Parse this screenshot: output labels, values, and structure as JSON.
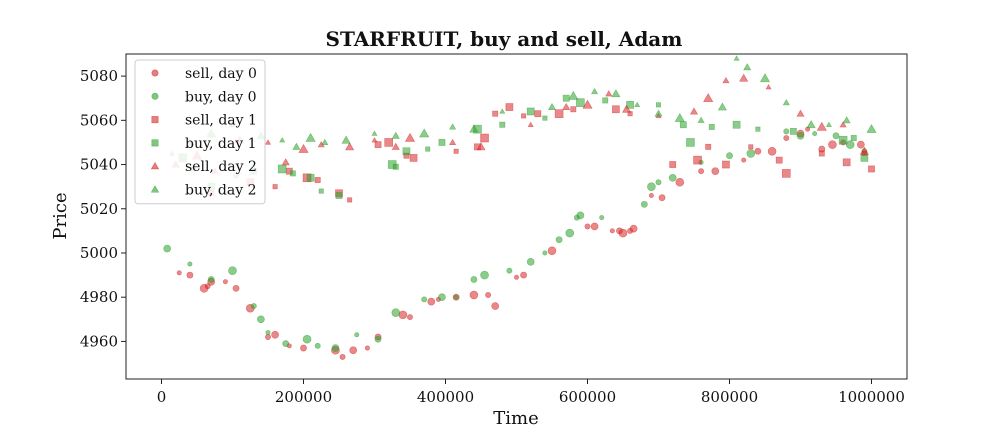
{
  "chart_data": {
    "type": "scatter",
    "title": "STARFRUIT, buy and sell, Adam",
    "xlabel": "Time",
    "ylabel": "Price",
    "xlim": [
      -50000,
      1050000
    ],
    "ylim": [
      4943,
      5090
    ],
    "xticks": [
      0,
      200000,
      400000,
      600000,
      800000,
      1000000
    ],
    "xtick_labels": [
      "0",
      "200000",
      "400000",
      "600000",
      "800000",
      "1000000"
    ],
    "yticks": [
      4960,
      4980,
      5000,
      5020,
      5040,
      5060,
      5080
    ],
    "ytick_labels": [
      "4960",
      "4980",
      "5000",
      "5020",
      "5040",
      "5060",
      "5080"
    ],
    "grid": false,
    "legend_position": "top-left",
    "series": [
      {
        "name": "sell, day 0",
        "color": "#d62728",
        "marker": "circle",
        "points": [
          [
            25000,
            4991
          ],
          [
            40000,
            4990
          ],
          [
            60000,
            4984
          ],
          [
            65000,
            4985
          ],
          [
            70000,
            4987
          ],
          [
            90000,
            4987
          ],
          [
            105000,
            4984
          ],
          [
            125000,
            4975
          ],
          [
            150000,
            4962
          ],
          [
            160000,
            4963
          ],
          [
            180000,
            4958
          ],
          [
            200000,
            4957
          ],
          [
            245000,
            4956
          ],
          [
            255000,
            4953
          ],
          [
            270000,
            4956
          ],
          [
            290000,
            4957
          ],
          [
            305000,
            4962
          ],
          [
            340000,
            4972
          ],
          [
            350000,
            4971
          ],
          [
            380000,
            4978
          ],
          [
            390000,
            4979
          ],
          [
            415000,
            4980
          ],
          [
            440000,
            4981
          ],
          [
            460000,
            4981
          ],
          [
            470000,
            4976
          ],
          [
            500000,
            4989
          ],
          [
            510000,
            4990
          ],
          [
            550000,
            5001
          ],
          [
            600000,
            5012
          ],
          [
            610000,
            5012
          ],
          [
            635000,
            5010
          ],
          [
            645000,
            5010
          ],
          [
            650000,
            5009
          ],
          [
            660000,
            5010
          ],
          [
            665000,
            5011
          ],
          [
            690000,
            5026
          ],
          [
            705000,
            5025
          ],
          [
            730000,
            5032
          ],
          [
            760000,
            5037
          ],
          [
            780000,
            5037
          ],
          [
            820000,
            5042
          ],
          [
            840000,
            5046
          ],
          [
            860000,
            5046
          ],
          [
            880000,
            5052
          ],
          [
            900000,
            5054
          ],
          [
            910000,
            5056
          ],
          [
            930000,
            5047
          ],
          [
            945000,
            5049
          ],
          [
            960000,
            5050
          ],
          [
            985000,
            5049
          ]
        ]
      },
      {
        "name": "buy, day 0",
        "color": "#2ca02c",
        "marker": "circle",
        "points": [
          [
            8000,
            5002
          ],
          [
            40000,
            4995
          ],
          [
            70000,
            4988
          ],
          [
            100000,
            4992
          ],
          [
            130000,
            4976
          ],
          [
            140000,
            4970
          ],
          [
            150000,
            4964
          ],
          [
            175000,
            4959
          ],
          [
            205000,
            4961
          ],
          [
            220000,
            4958
          ],
          [
            245000,
            4957
          ],
          [
            275000,
            4963
          ],
          [
            305000,
            4961
          ],
          [
            330000,
            4973
          ],
          [
            370000,
            4979
          ],
          [
            395000,
            4980
          ],
          [
            415000,
            4980
          ],
          [
            440000,
            4988
          ],
          [
            455000,
            4990
          ],
          [
            490000,
            4992
          ],
          [
            520000,
            4996
          ],
          [
            540000,
            5000
          ],
          [
            560000,
            5006
          ],
          [
            575000,
            5009
          ],
          [
            585000,
            5016
          ],
          [
            590000,
            5017
          ],
          [
            620000,
            5016
          ],
          [
            680000,
            5022
          ],
          [
            690000,
            5030
          ],
          [
            700000,
            5032
          ],
          [
            720000,
            5034
          ],
          [
            760000,
            5041
          ],
          [
            800000,
            5044
          ],
          [
            830000,
            5045
          ],
          [
            880000,
            5055
          ],
          [
            900000,
            5053
          ],
          [
            920000,
            5054
          ],
          [
            950000,
            5053
          ],
          [
            970000,
            5049
          ],
          [
            990000,
            5046
          ]
        ]
      },
      {
        "name": "sell, day 1",
        "color": "#d62728",
        "marker": "square",
        "points": [
          [
            70000,
            5027
          ],
          [
            125000,
            5032
          ],
          [
            160000,
            5030
          ],
          [
            180000,
            5037
          ],
          [
            205000,
            5034
          ],
          [
            220000,
            5033
          ],
          [
            250000,
            5027
          ],
          [
            265000,
            5024
          ],
          [
            305000,
            5049
          ],
          [
            320000,
            5050
          ],
          [
            345000,
            5044
          ],
          [
            355000,
            5043
          ],
          [
            415000,
            5046
          ],
          [
            445000,
            5048
          ],
          [
            455000,
            5052
          ],
          [
            470000,
            5063
          ],
          [
            490000,
            5066
          ],
          [
            510000,
            5062
          ],
          [
            530000,
            5063
          ],
          [
            560000,
            5063
          ],
          [
            580000,
            5065
          ],
          [
            640000,
            5065
          ],
          [
            660000,
            5063
          ],
          [
            720000,
            5040
          ],
          [
            755000,
            5042
          ],
          [
            770000,
            5048
          ],
          [
            795000,
            5040
          ],
          [
            830000,
            5048
          ],
          [
            870000,
            5042
          ],
          [
            880000,
            5036
          ],
          [
            930000,
            5045
          ],
          [
            965000,
            5041
          ],
          [
            990000,
            5045
          ],
          [
            1000000,
            5038
          ]
        ]
      },
      {
        "name": "buy, day 1",
        "color": "#2ca02c",
        "marker": "square",
        "points": [
          [
            30000,
            5043
          ],
          [
            45000,
            5038
          ],
          [
            70000,
            5030
          ],
          [
            105000,
            5035
          ],
          [
            130000,
            5037
          ],
          [
            170000,
            5038
          ],
          [
            185000,
            5036
          ],
          [
            210000,
            5034
          ],
          [
            225000,
            5028
          ],
          [
            250000,
            5026
          ],
          [
            325000,
            5040
          ],
          [
            330000,
            5039
          ],
          [
            345000,
            5046
          ],
          [
            375000,
            5047
          ],
          [
            395000,
            5050
          ],
          [
            445000,
            5056
          ],
          [
            480000,
            5058
          ],
          [
            520000,
            5064
          ],
          [
            540000,
            5061
          ],
          [
            570000,
            5070
          ],
          [
            590000,
            5068
          ],
          [
            625000,
            5069
          ],
          [
            660000,
            5067
          ],
          [
            700000,
            5067
          ],
          [
            735000,
            5058
          ],
          [
            745000,
            5050
          ],
          [
            775000,
            5057
          ],
          [
            810000,
            5058
          ],
          [
            840000,
            5056
          ],
          [
            890000,
            5055
          ],
          [
            960000,
            5051
          ],
          [
            975000,
            5052
          ],
          [
            990000,
            5043
          ]
        ]
      },
      {
        "name": "sell, day 2",
        "color": "#d62728",
        "marker": "triangle",
        "points": [
          [
            20000,
            5040
          ],
          [
            50000,
            5044
          ],
          [
            75000,
            5037
          ],
          [
            110000,
            5051
          ],
          [
            150000,
            5050
          ],
          [
            175000,
            5041
          ],
          [
            200000,
            5047
          ],
          [
            225000,
            5049
          ],
          [
            265000,
            5048
          ],
          [
            300000,
            5051
          ],
          [
            330000,
            5048
          ],
          [
            350000,
            5052
          ],
          [
            410000,
            5050
          ],
          [
            450000,
            5048
          ],
          [
            520000,
            5058
          ],
          [
            570000,
            5066
          ],
          [
            600000,
            5067
          ],
          [
            630000,
            5072
          ],
          [
            655000,
            5065
          ],
          [
            700000,
            5062
          ],
          [
            750000,
            5064
          ],
          [
            770000,
            5070
          ],
          [
            795000,
            5078
          ],
          [
            820000,
            5079
          ],
          [
            855000,
            5075
          ],
          [
            900000,
            5063
          ],
          [
            930000,
            5057
          ],
          [
            960000,
            5058
          ],
          [
            990000,
            5046
          ]
        ]
      },
      {
        "name": "buy, day 2",
        "color": "#2ca02c",
        "marker": "triangle",
        "points": [
          [
            15000,
            5045
          ],
          [
            40000,
            5050
          ],
          [
            70000,
            5054
          ],
          [
            100000,
            5058
          ],
          [
            140000,
            5053
          ],
          [
            170000,
            5051
          ],
          [
            190000,
            5048
          ],
          [
            210000,
            5052
          ],
          [
            230000,
            5050
          ],
          [
            260000,
            5051
          ],
          [
            300000,
            5054
          ],
          [
            330000,
            5053
          ],
          [
            370000,
            5054
          ],
          [
            410000,
            5057
          ],
          [
            440000,
            5056
          ],
          [
            480000,
            5064
          ],
          [
            550000,
            5066
          ],
          [
            580000,
            5071
          ],
          [
            610000,
            5073
          ],
          [
            640000,
            5072
          ],
          [
            670000,
            5067
          ],
          [
            700000,
            5063
          ],
          [
            730000,
            5061
          ],
          [
            760000,
            5060
          ],
          [
            790000,
            5066
          ],
          [
            810000,
            5088
          ],
          [
            825000,
            5084
          ],
          [
            850000,
            5079
          ],
          [
            880000,
            5068
          ],
          [
            915000,
            5058
          ],
          [
            940000,
            5058
          ],
          [
            965000,
            5060
          ],
          [
            1000000,
            5056
          ]
        ]
      }
    ]
  }
}
